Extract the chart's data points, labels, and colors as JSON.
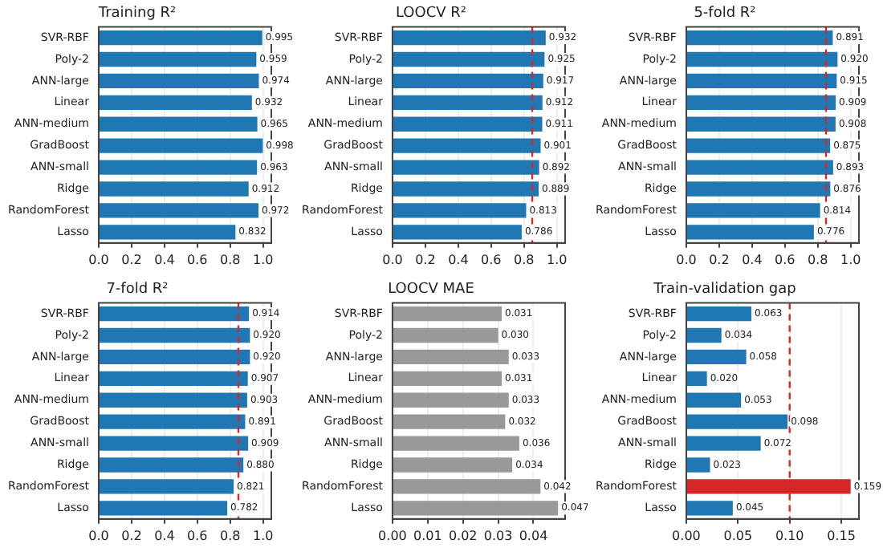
{
  "chart_data": [
    {
      "type": "bar",
      "orientation": "horizontal",
      "title": "Training R²",
      "categories": [
        "SVR-RBF",
        "Poly-2",
        "ANN-large",
        "Linear",
        "ANN-medium",
        "GradBoost",
        "ANN-small",
        "Ridge",
        "RandomForest",
        "Lasso"
      ],
      "values": [
        0.995,
        0.959,
        0.974,
        0.932,
        0.965,
        0.998,
        0.963,
        0.912,
        0.972,
        0.832
      ],
      "value_labels": [
        "0.995",
        "0.959",
        "0.974",
        "0.932",
        "0.965",
        "0.998",
        "0.963",
        "0.912",
        "0.972",
        "0.832"
      ],
      "color": "#1f77b4",
      "xlim": [
        0,
        1.05
      ],
      "xticks": [
        {
          "value": 0,
          "label": "0.0"
        },
        {
          "value": 0.2,
          "label": "0.2"
        },
        {
          "value": 0.4,
          "label": "0.4"
        },
        {
          "value": 0.6,
          "label": "0.6"
        },
        {
          "value": 0.8,
          "label": "0.8"
        },
        {
          "value": 1,
          "label": "1.0"
        }
      ],
      "grid": "x"
    },
    {
      "type": "bar",
      "orientation": "horizontal",
      "title": "LOOCV R²",
      "categories": [
        "SVR-RBF",
        "Poly-2",
        "ANN-large",
        "Linear",
        "ANN-medium",
        "GradBoost",
        "ANN-small",
        "Ridge",
        "RandomForest",
        "Lasso"
      ],
      "values": [
        0.932,
        0.925,
        0.917,
        0.912,
        0.911,
        0.901,
        0.892,
        0.889,
        0.813,
        0.786
      ],
      "value_labels": [
        "0.932",
        "0.925",
        "0.917",
        "0.912",
        "0.911",
        "0.901",
        "0.892",
        "0.889",
        "0.813",
        "0.786"
      ],
      "color": "#1f77b4",
      "xlim": [
        0,
        1.05
      ],
      "xticks": [
        {
          "value": 0,
          "label": "0.0"
        },
        {
          "value": 0.2,
          "label": "0.2"
        },
        {
          "value": 0.4,
          "label": "0.4"
        },
        {
          "value": 0.6,
          "label": "0.6"
        },
        {
          "value": 0.8,
          "label": "0.8"
        },
        {
          "value": 1,
          "label": "1.0"
        }
      ],
      "grid": "x",
      "ref_lines": [
        {
          "axis": "x",
          "value": 0.85,
          "color": "#d62728",
          "line_style": "dashed"
        }
      ]
    },
    {
      "type": "bar",
      "orientation": "horizontal",
      "title": "5-fold R²",
      "categories": [
        "SVR-RBF",
        "Poly-2",
        "ANN-large",
        "Linear",
        "ANN-medium",
        "GradBoost",
        "ANN-small",
        "Ridge",
        "RandomForest",
        "Lasso"
      ],
      "values": [
        0.891,
        0.92,
        0.915,
        0.909,
        0.908,
        0.875,
        0.893,
        0.876,
        0.814,
        0.776
      ],
      "value_labels": [
        "0.891",
        "0.920",
        "0.915",
        "0.909",
        "0.908",
        "0.875",
        "0.893",
        "0.876",
        "0.814",
        "0.776"
      ],
      "color": "#1f77b4",
      "xlim": [
        0,
        1.05
      ],
      "xticks": [
        {
          "value": 0,
          "label": "0.0"
        },
        {
          "value": 0.2,
          "label": "0.2"
        },
        {
          "value": 0.4,
          "label": "0.4"
        },
        {
          "value": 0.6,
          "label": "0.6"
        },
        {
          "value": 0.8,
          "label": "0.8"
        },
        {
          "value": 1,
          "label": "1.0"
        }
      ],
      "grid": "x",
      "ref_lines": [
        {
          "axis": "x",
          "value": 0.85,
          "color": "#d62728",
          "line_style": "dashed"
        }
      ]
    },
    {
      "type": "bar",
      "orientation": "horizontal",
      "title": "7-fold R²",
      "categories": [
        "SVR-RBF",
        "Poly-2",
        "ANN-large",
        "Linear",
        "ANN-medium",
        "GradBoost",
        "ANN-small",
        "Ridge",
        "RandomForest",
        "Lasso"
      ],
      "values": [
        0.914,
        0.92,
        0.92,
        0.907,
        0.903,
        0.891,
        0.909,
        0.88,
        0.821,
        0.782
      ],
      "value_labels": [
        "0.914",
        "0.920",
        "0.920",
        "0.907",
        "0.903",
        "0.891",
        "0.909",
        "0.880",
        "0.821",
        "0.782"
      ],
      "color": "#1f77b4",
      "xlim": [
        0,
        1.05
      ],
      "xticks": [
        {
          "value": 0,
          "label": "0.0"
        },
        {
          "value": 0.2,
          "label": "0.2"
        },
        {
          "value": 0.4,
          "label": "0.4"
        },
        {
          "value": 0.6,
          "label": "0.6"
        },
        {
          "value": 0.8,
          "label": "0.8"
        },
        {
          "value": 1,
          "label": "1.0"
        }
      ],
      "grid": "x",
      "ref_lines": [
        {
          "axis": "x",
          "value": 0.85,
          "color": "#d62728",
          "line_style": "dashed"
        }
      ]
    },
    {
      "type": "bar",
      "orientation": "horizontal",
      "title": "LOOCV MAE",
      "categories": [
        "SVR-RBF",
        "Poly-2",
        "ANN-large",
        "Linear",
        "ANN-medium",
        "GradBoost",
        "ANN-small",
        "Ridge",
        "RandomForest",
        "Lasso"
      ],
      "values": [
        0.031,
        0.03,
        0.033,
        0.031,
        0.033,
        0.032,
        0.036,
        0.034,
        0.042,
        0.047
      ],
      "value_labels": [
        "0.031",
        "0.030",
        "0.033",
        "0.031",
        "0.033",
        "0.032",
        "0.036",
        "0.034",
        "0.042",
        "0.047"
      ],
      "color": "#999999",
      "xlim": [
        0,
        0.049
      ],
      "xticks": [
        {
          "value": 0,
          "label": "0.00"
        },
        {
          "value": 0.01,
          "label": "0.01"
        },
        {
          "value": 0.02,
          "label": "0.02"
        },
        {
          "value": 0.03,
          "label": "0.03"
        },
        {
          "value": 0.04,
          "label": "0.04"
        }
      ],
      "grid": "x"
    },
    {
      "type": "bar",
      "orientation": "horizontal",
      "title": "Train-validation gap",
      "categories": [
        "SVR-RBF",
        "Poly-2",
        "ANN-large",
        "Linear",
        "ANN-medium",
        "GradBoost",
        "ANN-small",
        "Ridge",
        "RandomForest",
        "Lasso"
      ],
      "values": [
        0.063,
        0.034,
        0.058,
        0.02,
        0.053,
        0.098,
        0.072,
        0.023,
        0.159,
        0.045
      ],
      "value_labels": [
        "0.063",
        "0.034",
        "0.058",
        "0.020",
        "0.053",
        "0.098",
        "0.072",
        "0.023",
        "0.159",
        "0.045"
      ],
      "colors": [
        "#1f77b4",
        "#1f77b4",
        "#1f77b4",
        "#1f77b4",
        "#1f77b4",
        "#1f77b4",
        "#1f77b4",
        "#1f77b4",
        "#d62728",
        "#1f77b4"
      ],
      "xlim": [
        0,
        0.167
      ],
      "xticks": [
        {
          "value": 0,
          "label": "0.00"
        },
        {
          "value": 0.05,
          "label": "0.05"
        },
        {
          "value": 0.1,
          "label": "0.10"
        },
        {
          "value": 0.15,
          "label": "0.15"
        }
      ],
      "grid": "x",
      "ref_lines": [
        {
          "axis": "x",
          "value": 0.1,
          "color": "#d62728",
          "line_style": "dashed"
        }
      ]
    }
  ]
}
